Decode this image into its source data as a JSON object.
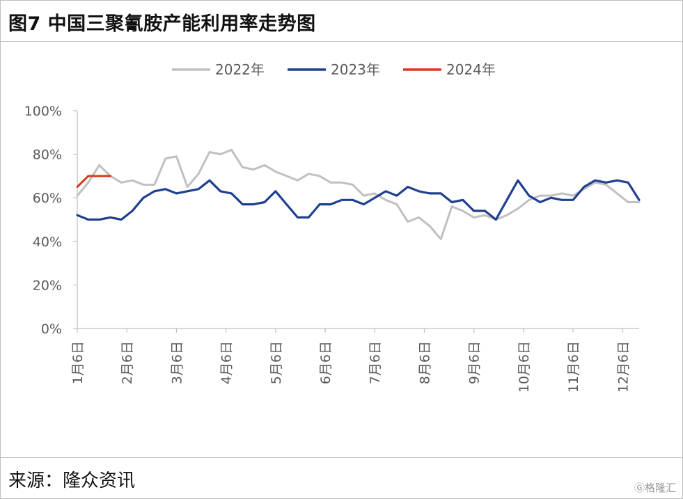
{
  "title": "图7 中国三聚氰胺产能利用率走势图",
  "source": "来源：隆众资讯",
  "watermark": "Ⓖ格隆汇",
  "chart_data": {
    "type": "line",
    "title": "",
    "xlabel": "",
    "ylabel": "",
    "ylim": [
      0,
      100
    ],
    "y_ticks": [
      "0%",
      "20%",
      "40%",
      "60%",
      "80%",
      "100%"
    ],
    "x_tick_labels": [
      "1月6日",
      "2月6日",
      "3月6日",
      "4月6日",
      "5月6日",
      "6月6日",
      "7月6日",
      "8月6日",
      "9月6日",
      "10月6日",
      "11月6日",
      "12月6日"
    ],
    "legend_position": "top-center",
    "series": [
      {
        "name": "2022年",
        "color": "#c0c0c0",
        "values": [
          61,
          67,
          75,
          70,
          67,
          68,
          66,
          66,
          78,
          79,
          65,
          71,
          81,
          80,
          82,
          74,
          73,
          75,
          72,
          70,
          68,
          71,
          70,
          67,
          67,
          66,
          61,
          62,
          59,
          57,
          49,
          51,
          47,
          41,
          56,
          54,
          51,
          52,
          50,
          52,
          55,
          59,
          61,
          61,
          62,
          61,
          64,
          67,
          66,
          62,
          58,
          58
        ]
      },
      {
        "name": "2023年",
        "color": "#1f3f8f",
        "values": [
          52,
          50,
          50,
          51,
          50,
          54,
          60,
          63,
          64,
          62,
          63,
          64,
          68,
          63,
          62,
          57,
          57,
          58,
          63,
          57,
          51,
          51,
          57,
          57,
          59,
          59,
          57,
          60,
          63,
          61,
          65,
          63,
          62,
          62,
          58,
          59,
          54,
          54,
          50,
          59,
          68,
          61,
          58,
          60,
          59,
          59,
          65,
          68,
          67,
          68,
          67,
          59
        ]
      },
      {
        "name": "2024年",
        "color": "#d93a1e",
        "values": [
          65,
          70,
          70,
          70
        ]
      }
    ]
  }
}
